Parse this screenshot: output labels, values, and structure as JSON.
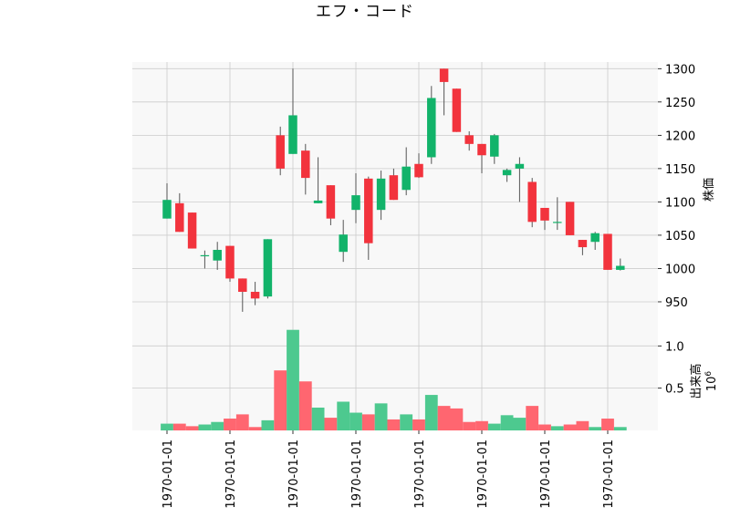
{
  "chart_data": {
    "type": "candlestick",
    "title": "エフ・コード",
    "x_tick_labels": [
      "1970-01-01",
      "1970-01-01",
      "1970-01-01",
      "1970-01-01",
      "1970-01-01",
      "1970-01-01",
      "1970-01-01",
      "1970-01-01"
    ],
    "x_tick_indices": [
      0,
      5,
      10,
      15,
      20,
      25,
      30,
      35
    ],
    "price_panel": {
      "ylabel": "株価",
      "ylim": [
        913,
        1310
      ],
      "yticks": [
        950,
        1000,
        1050,
        1100,
        1150,
        1200,
        1250,
        1300
      ],
      "grid": true
    },
    "volume_panel": {
      "ylabel": "出来高",
      "y_offset_label": "10^6",
      "y_offset_base": "10",
      "y_offset_exp": "6",
      "ylim": [
        0,
        1.23
      ],
      "yticks": [
        0.5,
        1.0
      ],
      "ytick_labels": [
        "0.5",
        "1.0"
      ],
      "grid": true
    },
    "colors": {
      "up": "#12b36a",
      "down": "#f2333d",
      "volume_up": "#4dc98f",
      "volume_down": "#ff6670",
      "wick": "#555555",
      "panel_bg": "#f8f8f8",
      "grid": "#cccccc"
    },
    "candles": [
      {
        "open": 1075,
        "high": 1128,
        "low": 1075,
        "close": 1103,
        "volume": 0.08
      },
      {
        "open": 1098,
        "high": 1113,
        "low": 1055,
        "close": 1055,
        "volume": 0.08
      },
      {
        "open": 1084,
        "high": 1084,
        "low": 1030,
        "close": 1030,
        "volume": 0.05
      },
      {
        "open": 1020,
        "high": 1027,
        "low": 1000,
        "close": 1020,
        "volume": 0.07
      },
      {
        "open": 1012,
        "high": 1040,
        "low": 998,
        "close": 1028,
        "volume": 0.1
      },
      {
        "open": 1034,
        "high": 1034,
        "low": 980,
        "close": 985,
        "volume": 0.14
      },
      {
        "open": 985,
        "high": 985,
        "low": 935,
        "close": 965,
        "volume": 0.19
      },
      {
        "open": 965,
        "high": 980,
        "low": 945,
        "close": 955,
        "volume": 0.04
      },
      {
        "open": 958,
        "high": 1044,
        "low": 955,
        "close": 1044,
        "volume": 0.12
      },
      {
        "open": 1200,
        "high": 1213,
        "low": 1140,
        "close": 1150,
        "volume": 0.71
      },
      {
        "open": 1172,
        "high": 1300,
        "low": 1172,
        "close": 1230,
        "volume": 1.19
      },
      {
        "open": 1177,
        "high": 1187,
        "low": 1111,
        "close": 1136,
        "volume": 0.58
      },
      {
        "open": 1098,
        "high": 1167,
        "low": 1098,
        "close": 1102,
        "volume": 0.27
      },
      {
        "open": 1125,
        "high": 1125,
        "low": 1065,
        "close": 1075,
        "volume": 0.15
      },
      {
        "open": 1025,
        "high": 1073,
        "low": 1010,
        "close": 1051,
        "volume": 0.34
      },
      {
        "open": 1088,
        "high": 1143,
        "low": 1068,
        "close": 1110,
        "volume": 0.21
      },
      {
        "open": 1135,
        "high": 1138,
        "low": 1013,
        "close": 1038,
        "volume": 0.19
      },
      {
        "open": 1088,
        "high": 1147,
        "low": 1073,
        "close": 1135,
        "volume": 0.32
      },
      {
        "open": 1140,
        "high": 1150,
        "low": 1103,
        "close": 1103,
        "volume": 0.13
      },
      {
        "open": 1118,
        "high": 1182,
        "low": 1110,
        "close": 1153,
        "volume": 0.19
      },
      {
        "open": 1157,
        "high": 1173,
        "low": 1136,
        "close": 1137,
        "volume": 0.13
      },
      {
        "open": 1167,
        "high": 1274,
        "low": 1157,
        "close": 1256,
        "volume": 0.42
      },
      {
        "open": 1300,
        "high": 1300,
        "low": 1230,
        "close": 1280,
        "volume": 0.29
      },
      {
        "open": 1270,
        "high": 1270,
        "low": 1205,
        "close": 1205,
        "volume": 0.26
      },
      {
        "open": 1200,
        "high": 1206,
        "low": 1177,
        "close": 1187,
        "volume": 0.1
      },
      {
        "open": 1187,
        "high": 1187,
        "low": 1143,
        "close": 1170,
        "volume": 0.11
      },
      {
        "open": 1168,
        "high": 1202,
        "low": 1157,
        "close": 1200,
        "volume": 0.08
      },
      {
        "open": 1140,
        "high": 1150,
        "low": 1130,
        "close": 1148,
        "volume": 0.18
      },
      {
        "open": 1150,
        "high": 1167,
        "low": 1100,
        "close": 1157,
        "volume": 0.15
      },
      {
        "open": 1130,
        "high": 1136,
        "low": 1062,
        "close": 1070,
        "volume": 0.29
      },
      {
        "open": 1091,
        "high": 1091,
        "low": 1058,
        "close": 1072,
        "volume": 0.07
      },
      {
        "open": 1070,
        "high": 1107,
        "low": 1058,
        "close": 1070,
        "volume": 0.05
      },
      {
        "open": 1100,
        "high": 1100,
        "low": 1050,
        "close": 1050,
        "volume": 0.07
      },
      {
        "open": 1043,
        "high": 1043,
        "low": 1020,
        "close": 1032,
        "volume": 0.11
      },
      {
        "open": 1040,
        "high": 1055,
        "low": 1028,
        "close": 1053,
        "volume": 0.04
      },
      {
        "open": 1052,
        "high": 1052,
        "low": 998,
        "close": 998,
        "volume": 0.14
      },
      {
        "open": 998,
        "high": 1015,
        "low": 997,
        "close": 1004,
        "volume": 0.04
      }
    ]
  }
}
